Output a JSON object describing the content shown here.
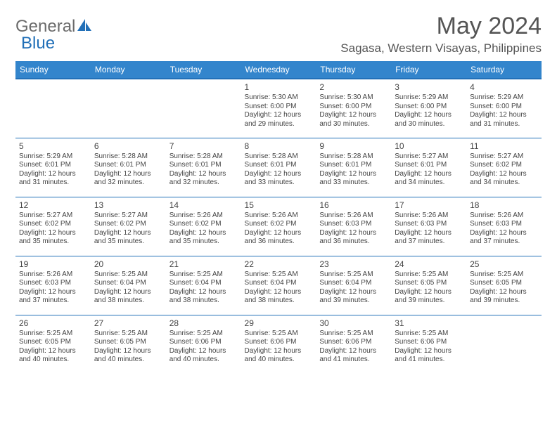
{
  "logo": {
    "text1": "General",
    "text2": "Blue"
  },
  "title": "May 2024",
  "location": "Sagasa, Western Visayas, Philippines",
  "header_bg": "#3385cc",
  "header_line": "#2270b8",
  "text_color": "#444444",
  "days": [
    "Sunday",
    "Monday",
    "Tuesday",
    "Wednesday",
    "Thursday",
    "Friday",
    "Saturday"
  ],
  "weeks": [
    [
      null,
      null,
      null,
      {
        "n": "1",
        "sr": "5:30 AM",
        "ss": "6:00 PM",
        "dl": [
          "Daylight: 12 hours",
          "and 29 minutes."
        ]
      },
      {
        "n": "2",
        "sr": "5:30 AM",
        "ss": "6:00 PM",
        "dl": [
          "Daylight: 12 hours",
          "and 30 minutes."
        ]
      },
      {
        "n": "3",
        "sr": "5:29 AM",
        "ss": "6:00 PM",
        "dl": [
          "Daylight: 12 hours",
          "and 30 minutes."
        ]
      },
      {
        "n": "4",
        "sr": "5:29 AM",
        "ss": "6:00 PM",
        "dl": [
          "Daylight: 12 hours",
          "and 31 minutes."
        ]
      }
    ],
    [
      {
        "n": "5",
        "sr": "5:29 AM",
        "ss": "6:01 PM",
        "dl": [
          "Daylight: 12 hours",
          "and 31 minutes."
        ]
      },
      {
        "n": "6",
        "sr": "5:28 AM",
        "ss": "6:01 PM",
        "dl": [
          "Daylight: 12 hours",
          "and 32 minutes."
        ]
      },
      {
        "n": "7",
        "sr": "5:28 AM",
        "ss": "6:01 PM",
        "dl": [
          "Daylight: 12 hours",
          "and 32 minutes."
        ]
      },
      {
        "n": "8",
        "sr": "5:28 AM",
        "ss": "6:01 PM",
        "dl": [
          "Daylight: 12 hours",
          "and 33 minutes."
        ]
      },
      {
        "n": "9",
        "sr": "5:28 AM",
        "ss": "6:01 PM",
        "dl": [
          "Daylight: 12 hours",
          "and 33 minutes."
        ]
      },
      {
        "n": "10",
        "sr": "5:27 AM",
        "ss": "6:01 PM",
        "dl": [
          "Daylight: 12 hours",
          "and 34 minutes."
        ]
      },
      {
        "n": "11",
        "sr": "5:27 AM",
        "ss": "6:02 PM",
        "dl": [
          "Daylight: 12 hours",
          "and 34 minutes."
        ]
      }
    ],
    [
      {
        "n": "12",
        "sr": "5:27 AM",
        "ss": "6:02 PM",
        "dl": [
          "Daylight: 12 hours",
          "and 35 minutes."
        ]
      },
      {
        "n": "13",
        "sr": "5:27 AM",
        "ss": "6:02 PM",
        "dl": [
          "Daylight: 12 hours",
          "and 35 minutes."
        ]
      },
      {
        "n": "14",
        "sr": "5:26 AM",
        "ss": "6:02 PM",
        "dl": [
          "Daylight: 12 hours",
          "and 35 minutes."
        ]
      },
      {
        "n": "15",
        "sr": "5:26 AM",
        "ss": "6:02 PM",
        "dl": [
          "Daylight: 12 hours",
          "and 36 minutes."
        ]
      },
      {
        "n": "16",
        "sr": "5:26 AM",
        "ss": "6:03 PM",
        "dl": [
          "Daylight: 12 hours",
          "and 36 minutes."
        ]
      },
      {
        "n": "17",
        "sr": "5:26 AM",
        "ss": "6:03 PM",
        "dl": [
          "Daylight: 12 hours",
          "and 37 minutes."
        ]
      },
      {
        "n": "18",
        "sr": "5:26 AM",
        "ss": "6:03 PM",
        "dl": [
          "Daylight: 12 hours",
          "and 37 minutes."
        ]
      }
    ],
    [
      {
        "n": "19",
        "sr": "5:26 AM",
        "ss": "6:03 PM",
        "dl": [
          "Daylight: 12 hours",
          "and 37 minutes."
        ]
      },
      {
        "n": "20",
        "sr": "5:25 AM",
        "ss": "6:04 PM",
        "dl": [
          "Daylight: 12 hours",
          "and 38 minutes."
        ]
      },
      {
        "n": "21",
        "sr": "5:25 AM",
        "ss": "6:04 PM",
        "dl": [
          "Daylight: 12 hours",
          "and 38 minutes."
        ]
      },
      {
        "n": "22",
        "sr": "5:25 AM",
        "ss": "6:04 PM",
        "dl": [
          "Daylight: 12 hours",
          "and 38 minutes."
        ]
      },
      {
        "n": "23",
        "sr": "5:25 AM",
        "ss": "6:04 PM",
        "dl": [
          "Daylight: 12 hours",
          "and 39 minutes."
        ]
      },
      {
        "n": "24",
        "sr": "5:25 AM",
        "ss": "6:05 PM",
        "dl": [
          "Daylight: 12 hours",
          "and 39 minutes."
        ]
      },
      {
        "n": "25",
        "sr": "5:25 AM",
        "ss": "6:05 PM",
        "dl": [
          "Daylight: 12 hours",
          "and 39 minutes."
        ]
      }
    ],
    [
      {
        "n": "26",
        "sr": "5:25 AM",
        "ss": "6:05 PM",
        "dl": [
          "Daylight: 12 hours",
          "and 40 minutes."
        ]
      },
      {
        "n": "27",
        "sr": "5:25 AM",
        "ss": "6:05 PM",
        "dl": [
          "Daylight: 12 hours",
          "and 40 minutes."
        ]
      },
      {
        "n": "28",
        "sr": "5:25 AM",
        "ss": "6:06 PM",
        "dl": [
          "Daylight: 12 hours",
          "and 40 minutes."
        ]
      },
      {
        "n": "29",
        "sr": "5:25 AM",
        "ss": "6:06 PM",
        "dl": [
          "Daylight: 12 hours",
          "and 40 minutes."
        ]
      },
      {
        "n": "30",
        "sr": "5:25 AM",
        "ss": "6:06 PM",
        "dl": [
          "Daylight: 12 hours",
          "and 41 minutes."
        ]
      },
      {
        "n": "31",
        "sr": "5:25 AM",
        "ss": "6:06 PM",
        "dl": [
          "Daylight: 12 hours",
          "and 41 minutes."
        ]
      },
      null
    ]
  ]
}
